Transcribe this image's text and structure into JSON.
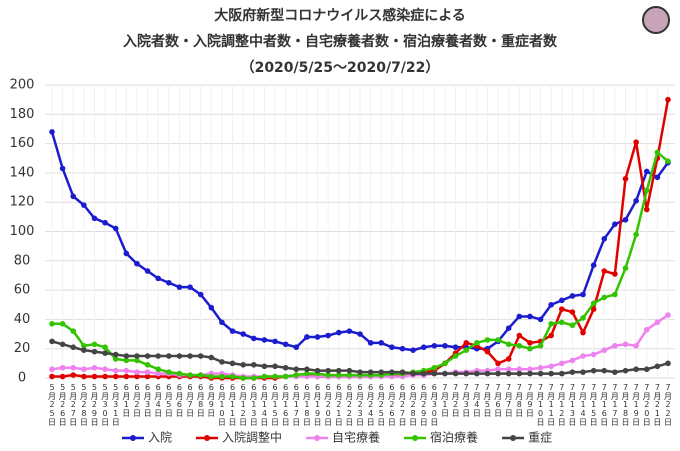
{
  "chart_data": {
    "type": "line",
    "title_lines": [
      "大阪府新型コロナウイルス感染症による",
      "入院者数・入院調整中者数・自宅療養者数・宿泊療養者数・重症者数",
      "（2020/5/25～2020/7/22）"
    ],
    "categories": [
      "5月25日",
      "5月26日",
      "5月27日",
      "5月28日",
      "5月29日",
      "5月30日",
      "5月31日",
      "6月1日",
      "6月2日",
      "6月3日",
      "6月4日",
      "6月5日",
      "6月6日",
      "6月7日",
      "6月8日",
      "6月9日",
      "6月10日",
      "6月11日",
      "6月12日",
      "6月13日",
      "6月14日",
      "6月15日",
      "6月16日",
      "6月17日",
      "6月18日",
      "6月19日",
      "6月20日",
      "6月21日",
      "6月22日",
      "6月23日",
      "6月24日",
      "6月25日",
      "6月26日",
      "6月27日",
      "6月28日",
      "6月29日",
      "6月30日",
      "7月1日",
      "7月2日",
      "7月3日",
      "7月4日",
      "7月5日",
      "7月6日",
      "7月7日",
      "7月8日",
      "7月9日",
      "7月10日",
      "7月11日",
      "7月12日",
      "7月13日",
      "7月14日",
      "7月15日",
      "7月16日",
      "7月17日",
      "7月18日",
      "7月19日",
      "7月20日",
      "7月21日",
      "7月22日"
    ],
    "series": [
      {
        "name": "入院",
        "color": "#1c1ccf",
        "values": [
          168,
          143,
          124,
          118,
          109,
          106,
          102,
          85,
          78,
          73,
          68,
          65,
          62,
          62,
          57,
          48,
          38,
          32,
          30,
          27,
          26,
          25,
          23,
          21,
          28,
          28,
          29,
          31,
          32,
          30,
          24,
          24,
          21,
          20,
          19,
          21,
          22,
          22,
          21,
          21,
          20,
          20,
          25,
          34,
          42,
          42,
          40,
          50,
          53,
          56,
          57,
          77,
          95,
          105,
          108,
          121,
          141,
          137,
          147
        ]
      },
      {
        "name": "入院調整中",
        "color": "#e00000",
        "values": [
          1,
          1,
          2,
          1,
          1,
          1,
          1,
          1,
          1,
          1,
          1,
          1,
          1,
          1,
          1,
          0,
          0,
          0,
          0,
          0,
          0,
          0,
          1,
          2,
          2,
          1,
          1,
          1,
          1,
          1,
          1,
          2,
          2,
          2,
          3,
          4,
          5,
          10,
          17,
          24,
          22,
          18,
          10,
          13,
          29,
          24,
          25,
          29,
          47,
          45,
          31,
          47,
          73,
          71,
          136,
          161,
          115,
          150,
          190
        ]
      },
      {
        "name": "自宅療養",
        "color": "#ee82ee",
        "values": [
          6,
          7,
          7,
          6,
          7,
          6,
          5,
          5,
          4,
          4,
          3,
          3,
          2,
          2,
          2,
          3,
          3,
          2,
          1,
          1,
          1,
          1,
          1,
          1,
          1,
          1,
          1,
          1,
          1,
          1,
          1,
          1,
          1,
          1,
          2,
          2,
          3,
          3,
          4,
          4,
          5,
          5,
          6,
          6,
          6,
          6,
          7,
          8,
          10,
          12,
          15,
          16,
          19,
          22,
          23,
          22,
          33,
          38,
          43
        ]
      },
      {
        "name": "宿泊療養",
        "color": "#33c400",
        "values": [
          37,
          37,
          32,
          22,
          23,
          21,
          13,
          12,
          12,
          9,
          6,
          4,
          3,
          2,
          2,
          1,
          1,
          1,
          0,
          0,
          1,
          1,
          1,
          2,
          3,
          3,
          2,
          2,
          2,
          2,
          2,
          2,
          3,
          3,
          4,
          5,
          7,
          10,
          15,
          19,
          24,
          26,
          26,
          23,
          22,
          20,
          22,
          37,
          38,
          36,
          41,
          51,
          55,
          57,
          75,
          98,
          128,
          154,
          148
        ]
      },
      {
        "name": "重症",
        "color": "#444444",
        "values": [
          25,
          23,
          21,
          19,
          18,
          17,
          16,
          15,
          15,
          15,
          15,
          15,
          15,
          15,
          15,
          14,
          11,
          10,
          9,
          9,
          8,
          8,
          7,
          6,
          6,
          5,
          5,
          5,
          5,
          4,
          4,
          4,
          4,
          4,
          3,
          3,
          3,
          3,
          3,
          3,
          3,
          3,
          3,
          3,
          3,
          3,
          3,
          3,
          3,
          4,
          4,
          5,
          5,
          4,
          5,
          6,
          6,
          8,
          10
        ]
      }
    ],
    "ylim": [
      0,
      200
    ],
    "yticks": [
      0,
      20,
      40,
      60,
      80,
      100,
      120,
      140,
      160,
      180,
      200
    ],
    "grid": true
  }
}
